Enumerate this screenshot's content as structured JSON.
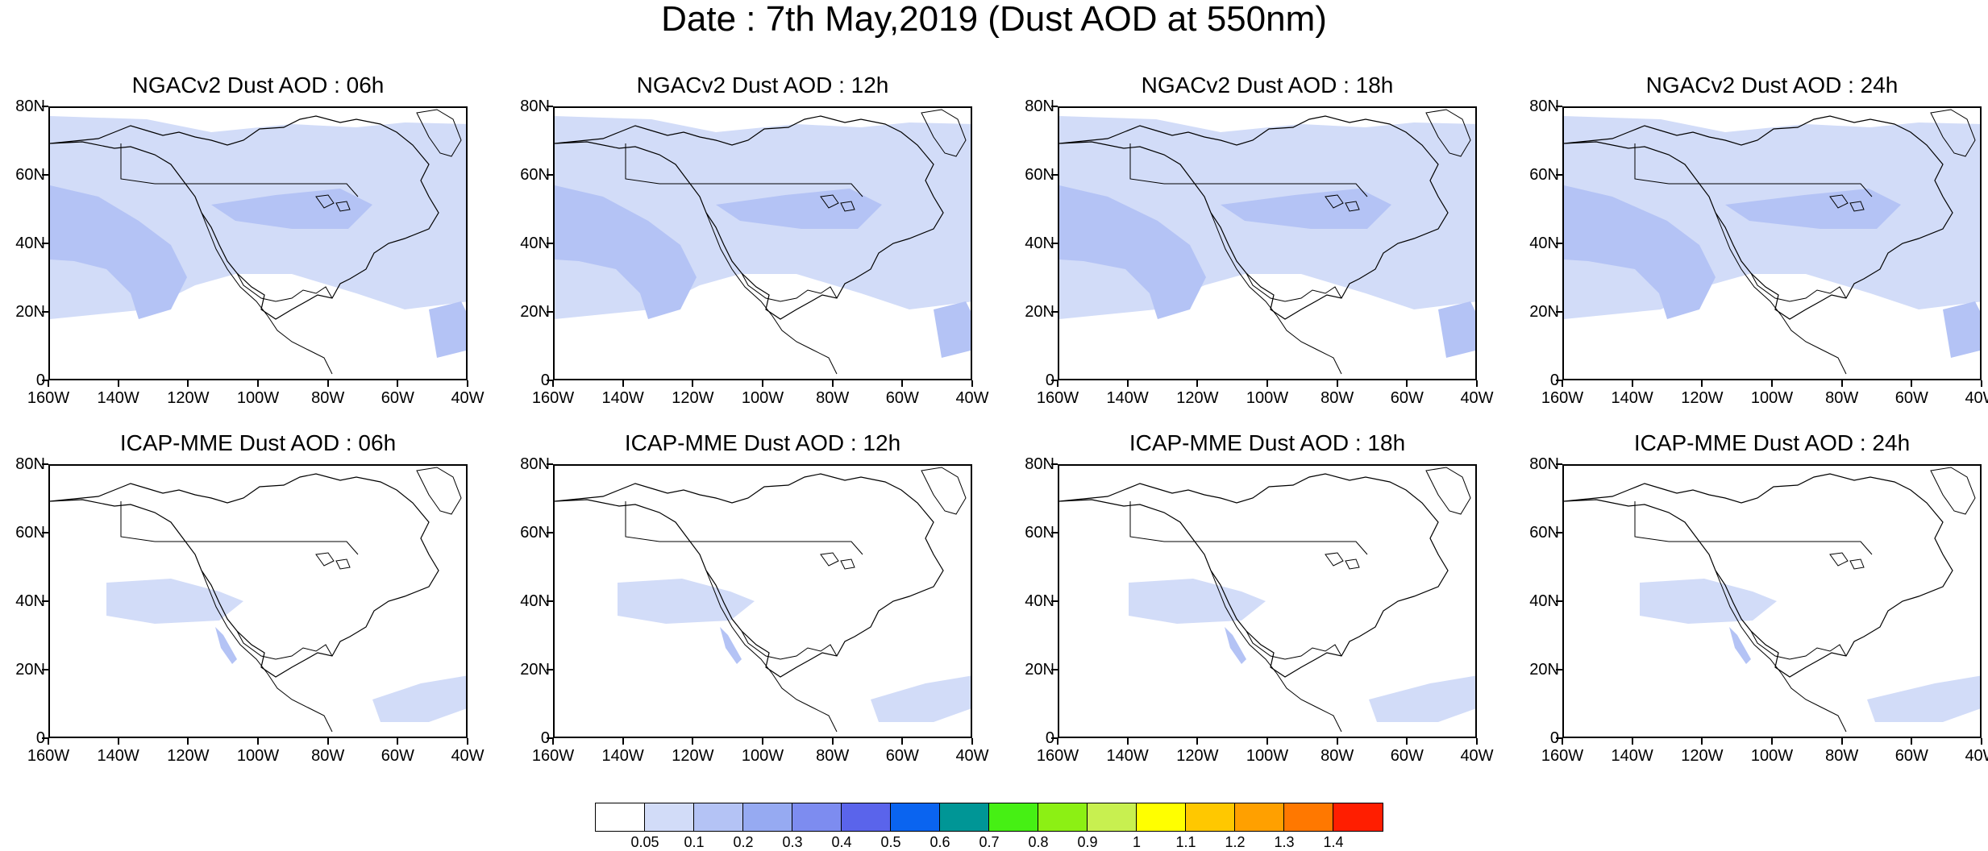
{
  "title": "Date : 7th May,2019 (Dust AOD at 550nm)",
  "panels": [
    {
      "title": "NGACv2 Dust AOD : 06h",
      "model": "ngac"
    },
    {
      "title": "NGACv2 Dust AOD : 12h",
      "model": "ngac"
    },
    {
      "title": "NGACv2 Dust AOD : 18h",
      "model": "ngac"
    },
    {
      "title": "NGACv2 Dust AOD : 24h",
      "model": "ngac"
    },
    {
      "title": "ICAP-MME Dust AOD : 06h",
      "model": "icap"
    },
    {
      "title": "ICAP-MME Dust AOD : 12h",
      "model": "icap"
    },
    {
      "title": "ICAP-MME Dust AOD : 18h",
      "model": "icap"
    },
    {
      "title": "ICAP-MME Dust AOD : 24h",
      "model": "icap"
    }
  ],
  "lat_labels": [
    "80N",
    "60N",
    "40N",
    "20N",
    "0"
  ],
  "lon_labels": [
    "160W",
    "140W",
    "120W",
    "100W",
    "80W",
    "60W",
    "40W"
  ],
  "colorbar": {
    "colors": [
      "#ffffff",
      "#d2dcf8",
      "#b4c3f5",
      "#96aaf2",
      "#7d8cf0",
      "#5a64eb",
      "#0a64f0",
      "#009696",
      "#46f014",
      "#8cf014",
      "#c8f050",
      "#ffff00",
      "#ffc800",
      "#ffa000",
      "#ff7800",
      "#ff1e00"
    ],
    "labels": [
      "0.05",
      "0.1",
      "0.2",
      "0.3",
      "0.4",
      "0.5",
      "0.6",
      "0.7",
      "0.8",
      "0.9",
      "1",
      "1.1",
      "1.2",
      "1.3",
      "1.4"
    ]
  }
}
